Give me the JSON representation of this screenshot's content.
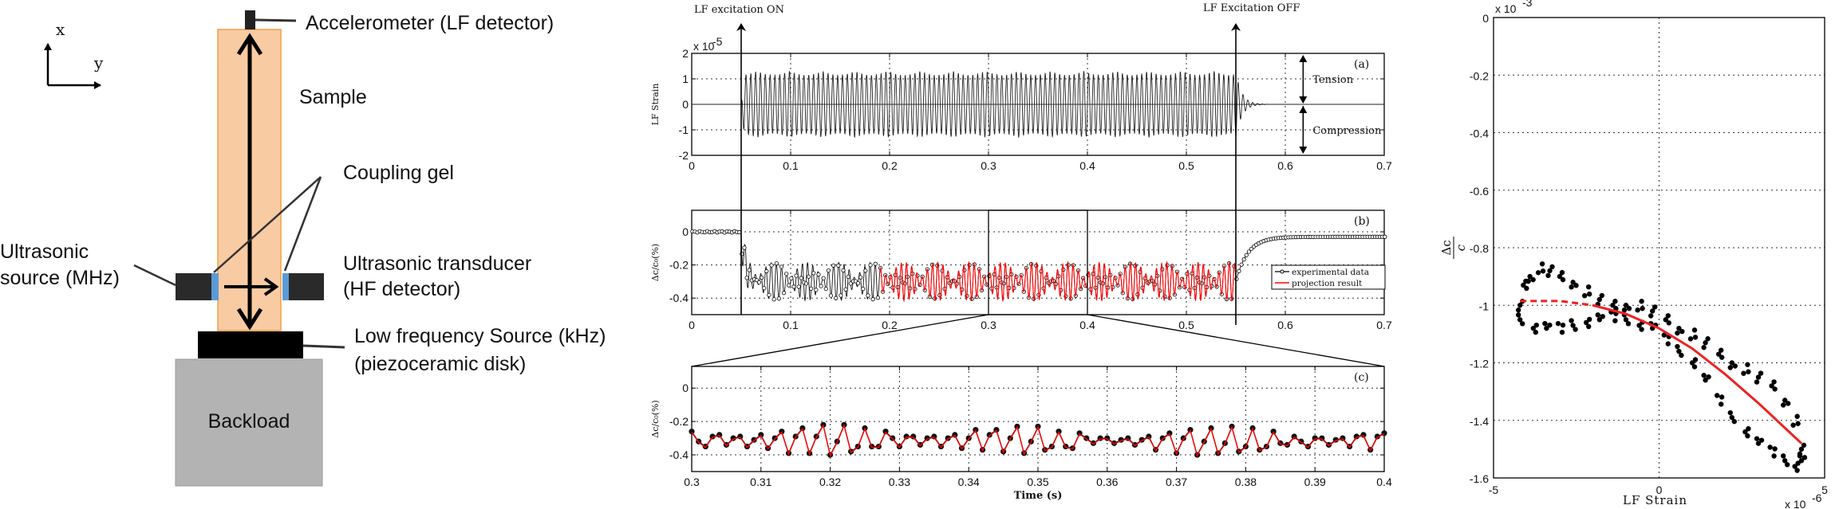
{
  "diagram": {
    "axis_x": "x",
    "axis_y": "y",
    "accelerometer": "Accelerometer (LF detector)",
    "sample": "Sample",
    "coupling_gel": "Coupling gel",
    "us_source_1": "Ultrasonic",
    "us_source_2": "source (MHz)",
    "us_transducer_1": "Ultrasonic transducer",
    "us_transducer_2": "(HF detector)",
    "lf_source_1": "Low frequency Source (kHz)",
    "lf_source_2": "(piezoceramic disk)",
    "backload": "Backload",
    "colors": {
      "sample": "#f9cba2",
      "sample_border": "#f0a048",
      "gel": "#5b9bd5",
      "backload": "#b3b3b3"
    }
  },
  "annotations": {
    "on": "LF excitation ON",
    "off": "LF Excitation OFF",
    "t_on": 0.05,
    "t_off": 0.55
  },
  "chart_data": [
    {
      "id": "a",
      "type": "line",
      "panel_label": "(a)",
      "ylabel": "LF Strain",
      "y_multiplier": "x 10",
      "y_multiplier_exp": "-5",
      "xlim": [
        0,
        0.7
      ],
      "ylim": [
        -2,
        2
      ],
      "xticks": [
        "0",
        "0.1",
        "0.2",
        "0.3",
        "0.4",
        "0.5",
        "0.6",
        "0.7"
      ],
      "yticks": [
        "-2",
        "-1",
        "0",
        "1",
        "2"
      ],
      "tension": "Tension",
      "compression": "Compression",
      "signal": {
        "t_on": 0.05,
        "t_off": 0.55,
        "amplitude": 1.3,
        "beat_period": 0.033,
        "color": "#222222"
      }
    },
    {
      "id": "b",
      "type": "line",
      "panel_label": "(b)",
      "ylabel": "Δc/c₀(%)",
      "xlim": [
        0,
        0.7
      ],
      "ylim": [
        -0.5,
        0.13
      ],
      "xticks": [
        "0",
        "0.1",
        "0.2",
        "0.3",
        "0.4",
        "0.5",
        "0.6",
        "0.7"
      ],
      "yticks": [
        "-0.4",
        "-0.2",
        "0"
      ],
      "legend": [
        "experimental data",
        "projection result"
      ],
      "series_colors": [
        "#000000",
        "#ff0000"
      ],
      "signal": {
        "before": 0,
        "mean_during": -0.3,
        "envelope": 0.1,
        "after_final": -0.03,
        "projection_start": 0.19
      },
      "zoom_window": [
        0.3,
        0.4
      ]
    },
    {
      "id": "c",
      "type": "line",
      "panel_label": "(c)",
      "ylabel": "Δc/c₀(%)",
      "xlabel": "Time (s)",
      "xlim": [
        0.3,
        0.4
      ],
      "ylim": [
        -0.5,
        0.13
      ],
      "xticks": [
        "0.3",
        "0.31",
        "0.32",
        "0.33",
        "0.34",
        "0.35",
        "0.36",
        "0.37",
        "0.38",
        "0.39",
        "0.4"
      ],
      "yticks": [
        "-0.4",
        "-0.2",
        "0"
      ],
      "x_start": 0.3,
      "x_step": 0.001,
      "values": [
        -0.26,
        -0.32,
        -0.35,
        -0.29,
        -0.28,
        -0.34,
        -0.3,
        -0.29,
        -0.35,
        -0.31,
        -0.28,
        -0.36,
        -0.3,
        -0.26,
        -0.39,
        -0.29,
        -0.24,
        -0.39,
        -0.29,
        -0.22,
        -0.4,
        -0.32,
        -0.22,
        -0.38,
        -0.35,
        -0.24,
        -0.35,
        -0.35,
        -0.26,
        -0.3,
        -0.35,
        -0.29,
        -0.29,
        -0.34,
        -0.3,
        -0.29,
        -0.35,
        -0.3,
        -0.28,
        -0.36,
        -0.3,
        -0.25,
        -0.37,
        -0.28,
        -0.25,
        -0.38,
        -0.3,
        -0.23,
        -0.39,
        -0.32,
        -0.23,
        -0.37,
        -0.35,
        -0.26,
        -0.35,
        -0.36,
        -0.27,
        -0.3,
        -0.33,
        -0.3,
        -0.3,
        -0.33,
        -0.31,
        -0.3,
        -0.34,
        -0.31,
        -0.29,
        -0.37,
        -0.3,
        -0.27,
        -0.39,
        -0.3,
        -0.25,
        -0.4,
        -0.32,
        -0.24,
        -0.39,
        -0.33,
        -0.23,
        -0.38,
        -0.35,
        -0.24,
        -0.37,
        -0.35,
        -0.26,
        -0.33,
        -0.34,
        -0.29,
        -0.32,
        -0.35,
        -0.3,
        -0.3,
        -0.34,
        -0.31,
        -0.3,
        -0.35,
        -0.29,
        -0.28,
        -0.37,
        -0.29,
        -0.27
      ]
    },
    {
      "id": "d",
      "type": "scatter",
      "xlabel": "LF Strain",
      "x_multiplier": "x 10",
      "x_multiplier_exp": "-6",
      "ylabel_num": "Δc",
      "ylabel_den": "c",
      "y_multiplier": "x 10",
      "y_multiplier_exp": "-3",
      "xlim": [
        -5,
        5
      ],
      "ylim": [
        -1.6,
        0
      ],
      "xticks": [
        "-5",
        "0",
        "5"
      ],
      "yticks": [
        "-1.6",
        "-1.4",
        "-1.2",
        "-1",
        "-0.8",
        "-0.6",
        "-0.4",
        "-0.2",
        "0"
      ],
      "upper_branch": [
        [
          -4.2,
          -1.0
        ],
        [
          -4.1,
          -0.93
        ],
        [
          -3.9,
          -0.9
        ],
        [
          -3.6,
          -0.87
        ],
        [
          -3.3,
          -0.88
        ],
        [
          -3.0,
          -0.9
        ],
        [
          -2.6,
          -0.92
        ],
        [
          -2.2,
          -0.95
        ],
        [
          -1.8,
          -0.98
        ],
        [
          -1.4,
          -1.0
        ],
        [
          -1.0,
          -1.0
        ],
        [
          -0.6,
          -1.0
        ],
        [
          -0.2,
          -1.02
        ],
        [
          0.2,
          -1.05
        ],
        [
          0.6,
          -1.08
        ],
        [
          1.0,
          -1.1
        ],
        [
          1.4,
          -1.13
        ],
        [
          1.8,
          -1.17
        ],
        [
          2.2,
          -1.2
        ],
        [
          2.6,
          -1.22
        ],
        [
          3.0,
          -1.25
        ],
        [
          3.4,
          -1.28
        ],
        [
          3.8,
          -1.33
        ],
        [
          4.1,
          -1.4
        ],
        [
          4.3,
          -1.5
        ]
      ],
      "lower_branch": [
        [
          -4.2,
          -1.05
        ],
        [
          -3.8,
          -1.08
        ],
        [
          -3.4,
          -1.08
        ],
        [
          -3.0,
          -1.08
        ],
        [
          -2.6,
          -1.07
        ],
        [
          -2.2,
          -1.06
        ],
        [
          -1.8,
          -1.05
        ],
        [
          -1.4,
          -1.04
        ],
        [
          -1.0,
          -1.05
        ],
        [
          -0.6,
          -1.07
        ],
        [
          -0.2,
          -1.08
        ],
        [
          0.2,
          -1.12
        ],
        [
          0.6,
          -1.16
        ],
        [
          1.0,
          -1.2
        ],
        [
          1.4,
          -1.26
        ],
        [
          1.8,
          -1.33
        ],
        [
          2.2,
          -1.39
        ],
        [
          2.6,
          -1.44
        ],
        [
          3.0,
          -1.48
        ],
        [
          3.4,
          -1.51
        ],
        [
          3.8,
          -1.54
        ],
        [
          4.1,
          -1.56
        ],
        [
          4.3,
          -1.54
        ]
      ],
      "fit_curve": [
        [
          -4.2,
          -0.985
        ],
        [
          -3,
          -0.985
        ],
        [
          -2,
          -1.0
        ],
        [
          -1,
          -1.03
        ],
        [
          0,
          -1.08
        ],
        [
          1,
          -1.15
        ],
        [
          2,
          -1.24
        ],
        [
          3,
          -1.34
        ],
        [
          4.3,
          -1.48
        ]
      ],
      "fit_dashed_below_x": -2,
      "fit_color": "#ee2222"
    }
  ]
}
